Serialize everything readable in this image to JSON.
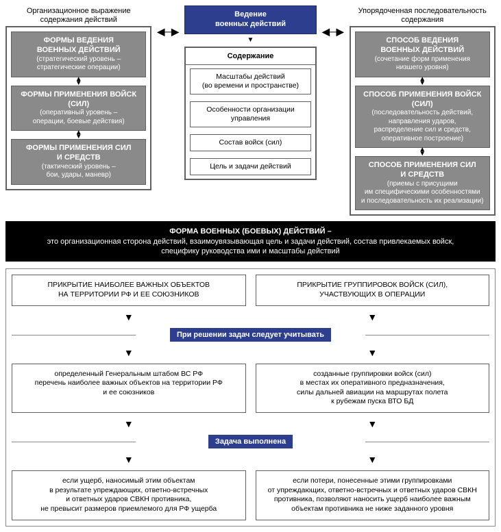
{
  "colors": {
    "blue": "#2e3e8f",
    "grey": "#8a8a8a",
    "black": "#000000",
    "border": "#606060",
    "white": "#ffffff"
  },
  "left": {
    "header": "Организационное выражение\nсодержания действий",
    "b1_title": "ФОРМЫ ВЕДЕНИЯ\nВОЕННЫХ ДЕЙСТВИЙ",
    "b1_sub": "(стратегический уровень –\nстратегические операции)",
    "b2_title": "ФОРМЫ ПРИМЕНЕНИЯ ВОЙСК (СИЛ)",
    "b2_sub": "(оперативный уровень –\nоперации, боевые действия)",
    "b3_title": "ФОРМЫ ПРИМЕНЕНИЯ СИЛ\nИ СРЕДСТВ",
    "b3_sub": "(тактический уровень –\nбои, удары, маневр)"
  },
  "center": {
    "top": "Ведение\nвоенных действий",
    "header": "Содержание",
    "r1": "Масштабы действий\n(во времени и пространстве)",
    "r2": "Особенности организации управления",
    "r3": "Состав войск (сил)",
    "r4": "Цель и задачи действий"
  },
  "right": {
    "header": "Упорядоченная последовательность\nсодержания",
    "b1_title": "СПОСОБ ВЕДЕНИЯ\nВОЕННЫХ ДЕЙСТВИЙ",
    "b1_sub": "(сочетание форм применения\nнизшего уровня)",
    "b2_title": "СПОСОБ ПРИМЕНЕНИЯ ВОЙСК (СИЛ)",
    "b2_sub": "(последовательность действий,\nнаправления ударов,\nраспределение сил и средств,\nоперативное построение)",
    "b3_title": "СПОСОБ ПРИМЕНЕНИЯ СИЛ\nИ СРЕДСТВ",
    "b3_sub": "(приемы с присущими\nим специфическими особенностями\nи последовательность их реализации)"
  },
  "black": {
    "title": "ФОРМА ВОЕННЫХ (БОЕВЫХ) ДЕЙСТВИЙ –",
    "text": "это организационная сторона действий, взаимоувязывающая цель и задачи действий, состав привлекаемых войск,\nспецифику руководства ими и масштабы действий"
  },
  "lower": {
    "row1_left": "ПРИКРЫТИЕ НАИБОЛЕЕ ВАЖНЫХ ОБЪЕКТОВ\nНА ТЕРРИТОРИИ РФ И ЕЕ СОЮЗНИКОВ",
    "row1_right": "ПРИКРЫТИЕ ГРУППИРОВОК ВОЙСК (СИЛ),\nУЧАСТВУЮЩИХ В ОПЕРАЦИИ",
    "ribbon1": "При решении задач следует учитывать",
    "row2_left": "определенный Генеральным штабом ВС РФ\nперечень наиболее важных объектов на территории РФ\nи ее союзников",
    "row2_right": "созданные группировки войск (сил)\nв местах их оперативного предназначения,\nсилы дальней авиации на маршрутах полета\nк рубежам пуска ВТО БД",
    "ribbon2": "Задача выполнена",
    "row3_left": "если ущерб, наносимый этим объектам\nв результате упреждающих, ответно-встречных\nи ответных ударов СВКН противника,\nне превысит размеров приемлемого для РФ ущерба",
    "row3_right": "если потери, понесенные этими группировками\nот упреждающих, ответно-встречных и ответных ударов СВКН\nпротивника, позволяют наносить ущерб наиболее важным\nобъектам противника не ниже заданного уровня"
  }
}
